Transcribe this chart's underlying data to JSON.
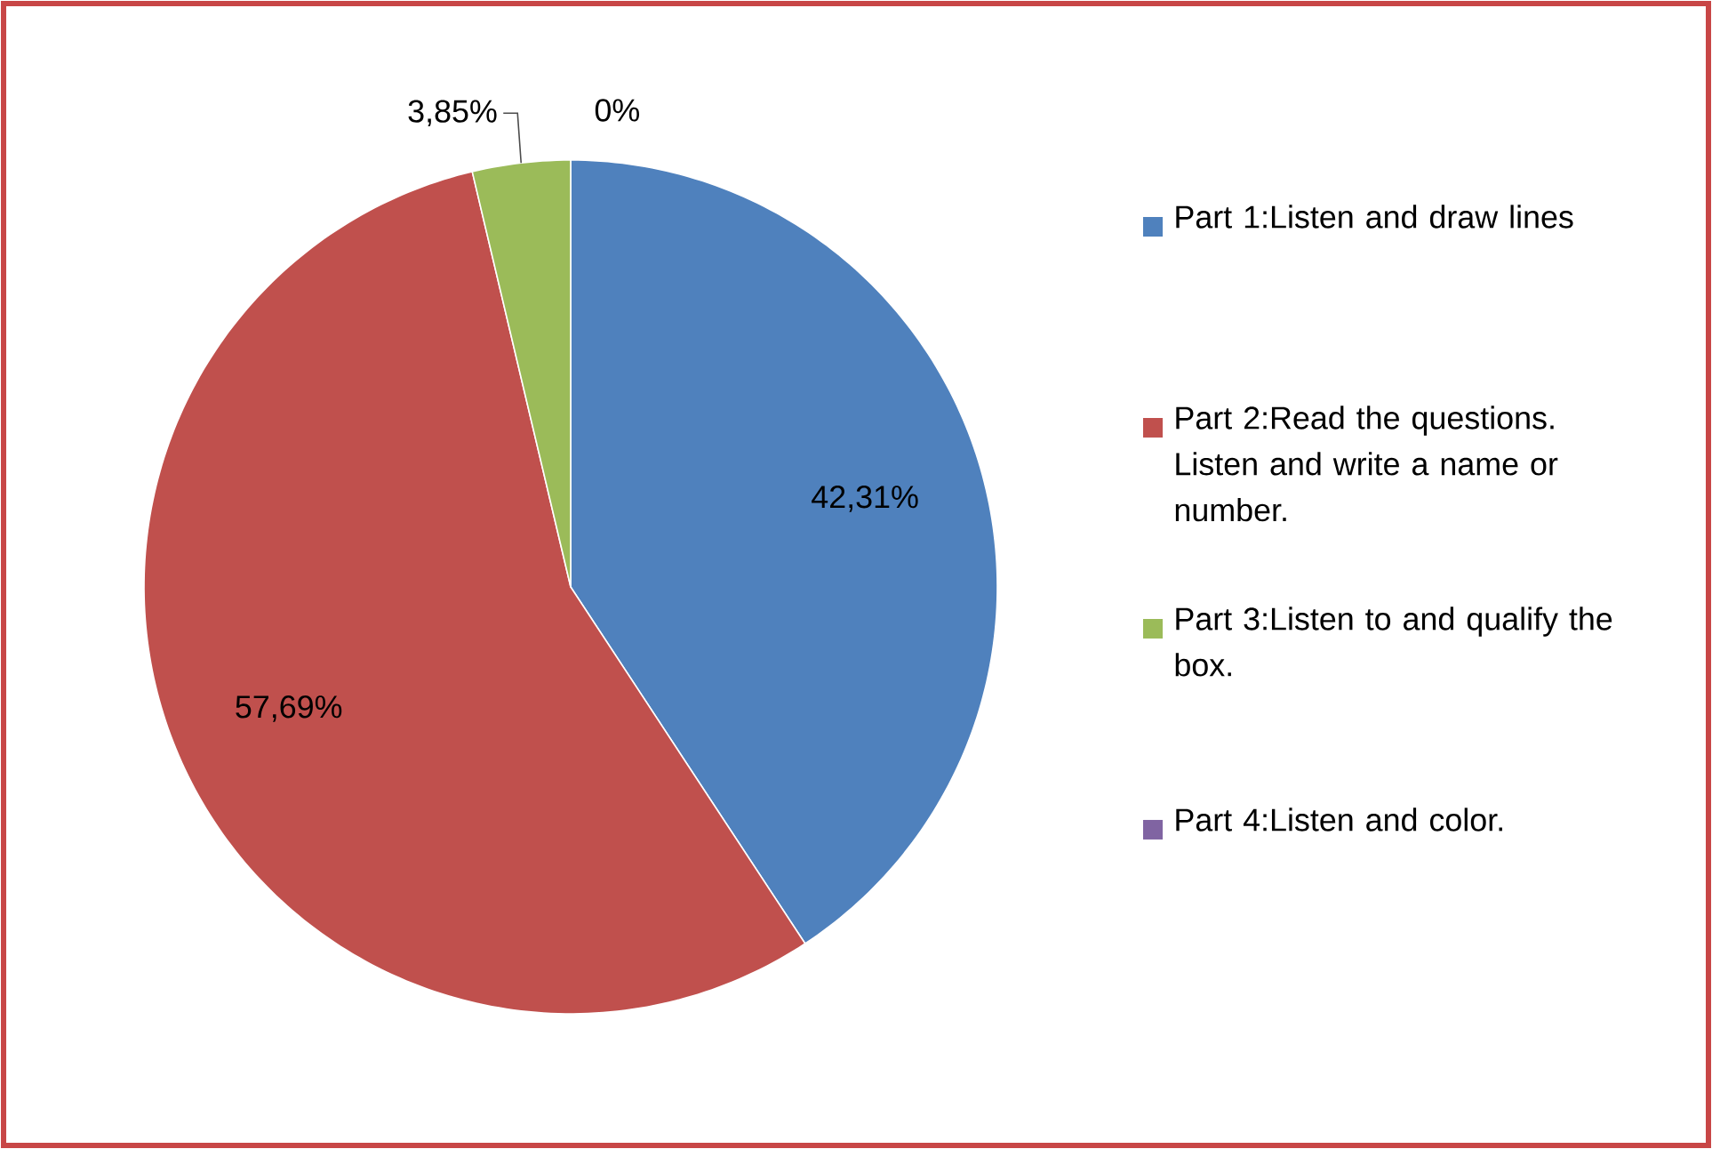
{
  "chart_data": {
    "type": "pie",
    "categories": [
      "Part 1:Listen and draw lines",
      "Part 2:Read the questions. Listen and write a name or number.",
      "Part 3:Listen to and qualify the box.",
      "Part 4:Listen and color."
    ],
    "values": [
      42.31,
      57.69,
      3.85,
      0
    ],
    "colors": [
      "#4f81bd",
      "#c0504d",
      "#9bbb59",
      "#8064a2"
    ],
    "value_labels": [
      "42,31%",
      "57,69%",
      "3,85%",
      "0%"
    ],
    "legend": "right"
  }
}
